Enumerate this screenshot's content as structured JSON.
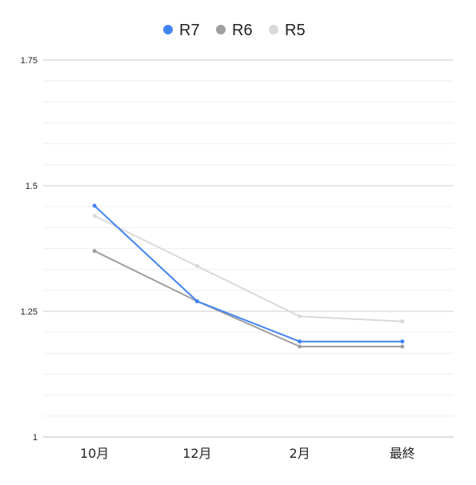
{
  "chart_data": {
    "type": "line",
    "categories": [
      "10月",
      "12月",
      "2月",
      "最終"
    ],
    "series": [
      {
        "name": "R7",
        "color": "#4285f4",
        "values": [
          1.46,
          1.27,
          1.19,
          1.19
        ]
      },
      {
        "name": "R6",
        "color": "#9e9e9e",
        "values": [
          1.37,
          1.27,
          1.18,
          1.18
        ]
      },
      {
        "name": "R5",
        "color": "#d9d9d9",
        "values": [
          1.44,
          1.34,
          1.24,
          1.23
        ]
      }
    ],
    "ylim": [
      1,
      1.75
    ],
    "yticks": [
      "1",
      "1.25",
      "1.5",
      "1.75"
    ],
    "minor_gridlines": true,
    "legend_position": "top-center",
    "grid": true
  }
}
